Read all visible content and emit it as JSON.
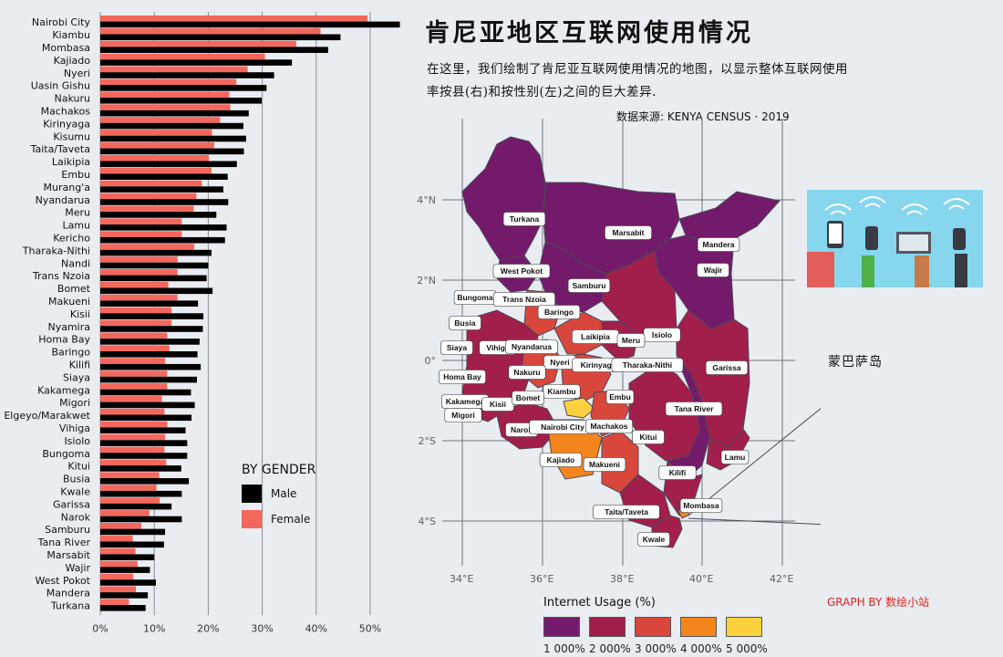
{
  "title": "肯尼亚地区互联网使用情况",
  "description": "在这里，我们绘制了肯尼亚互联网使用情况的地图，以显示整体互联网使用率按县(右)和按性别(左)之间的巨大差异.",
  "source": "数据来源: KENYA CENSUS · 2019",
  "inset_label": "蒙巴萨岛",
  "credit": "GRAPH BY 数绘小站",
  "colors": {
    "male": "#000000",
    "female": "#f4675d",
    "background": "#e9edf2",
    "scale": [
      "#741a6a",
      "#a21f4b",
      "#d9473c",
      "#f4851c",
      "#fbd23e"
    ]
  },
  "gender_legend": {
    "title": "BY GENDER",
    "male_label": "Male",
    "female_label": "Female"
  },
  "map_legend": {
    "title": "Internet Usage (%)",
    "labels": [
      "1 000%",
      "2 000%",
      "3 000%",
      "4 000%",
      "5 000%"
    ]
  },
  "map_axes": {
    "lon_ticks": [
      "34°E",
      "36°E",
      "38°E",
      "40°E",
      "42°E"
    ],
    "lat_ticks": [
      "4°N",
      "2°N",
      "0°",
      "2°S",
      "4°S"
    ]
  },
  "county_labels": [
    "Turkana",
    "Marsabit",
    "Mandera",
    "Wajir",
    "West Pokot",
    "Samburu",
    "Bungoma",
    "Trans Nzoia",
    "Baringo",
    "Busia",
    "Isiolo",
    "Laikipia",
    "Meru",
    "Siaya",
    "Vihiga",
    "Nyandarua",
    "Nyeri",
    "Kirinyaga",
    "Tharaka-Nithi",
    "Garissa",
    "Homa Bay",
    "Nakuru",
    "Kiambu",
    "Kakamega",
    "Kisii",
    "Bomet",
    "Embu",
    "Migori",
    "Tana River",
    "Narok",
    "Nairobi City",
    "Machakos",
    "Kitui",
    "Kajiado",
    "Makueni",
    "Lamu",
    "Kilifi",
    "Mombasa",
    "Taita/Taveta",
    "Kwale"
  ],
  "chart_data": {
    "type": "bar",
    "orientation": "horizontal",
    "xlim": [
      0,
      55
    ],
    "x_ticks": [
      "0%",
      "10%",
      "20%",
      "30%",
      "40%",
      "50%"
    ],
    "categories": [
      "Nairobi City",
      "Kiambu",
      "Mombasa",
      "Kajiado",
      "Nyeri",
      "Uasin Gishu",
      "Nakuru",
      "Machakos",
      "Kirinyaga",
      "Kisumu",
      "Taita/Taveta",
      "Laikipia",
      "Embu",
      "Murang'a",
      "Nyandarua",
      "Meru",
      "Lamu",
      "Kericho",
      "Tharaka-Nithi",
      "Nandi",
      "Trans Nzoia",
      "Bomet",
      "Makueni",
      "Kisii",
      "Nyamira",
      "Homa Bay",
      "Baringo",
      "Kilifi",
      "Siaya",
      "Kakamega",
      "Migori",
      "Elgeyo/Marakwet",
      "Vihiga",
      "Isiolo",
      "Bungoma",
      "Kitui",
      "Busia",
      "Kwale",
      "Garissa",
      "Narok",
      "Samburu",
      "Tana River",
      "Marsabit",
      "Wajir",
      "West Pokot",
      "Mandera",
      "Turkana"
    ],
    "series": [
      {
        "name": "Female",
        "values": [
          49.5,
          40.8,
          36.3,
          30.5,
          27.3,
          25.2,
          23.9,
          24.1,
          22.2,
          20.7,
          21.1,
          20.1,
          20.6,
          18.8,
          17.8,
          17.3,
          15.1,
          15.1,
          17.4,
          14.3,
          14.3,
          12.6,
          14.3,
          13.2,
          13.2,
          12.4,
          12.8,
          12.0,
          12.4,
          12.4,
          11.4,
          11.9,
          12.4,
          12.0,
          11.9,
          12.2,
          10.9,
          10.4,
          11.0,
          9.1,
          7.6,
          6.0,
          6.5,
          6.9,
          6.1,
          6.6,
          5.3
        ]
      },
      {
        "name": "Male",
        "values": [
          55.5,
          44.5,
          42.2,
          35.5,
          32.2,
          30.8,
          29.9,
          27.5,
          26.5,
          27.0,
          26.6,
          25.3,
          23.6,
          22.8,
          23.7,
          21.5,
          23.4,
          23.1,
          20.6,
          20.0,
          19.7,
          20.8,
          18.1,
          19.1,
          19.0,
          18.4,
          18.0,
          18.6,
          17.9,
          16.8,
          17.5,
          16.9,
          15.8,
          16.1,
          16.1,
          15.0,
          16.4,
          15.1,
          13.2,
          15.1,
          12.0,
          11.8,
          10.0,
          9.2,
          10.3,
          8.8,
          8.4
        ]
      }
    ]
  }
}
